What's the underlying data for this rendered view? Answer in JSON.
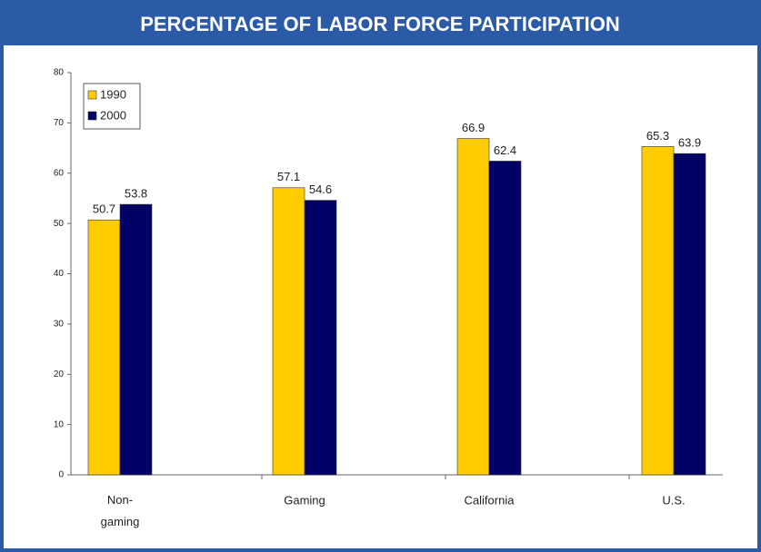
{
  "chart_data": {
    "type": "bar",
    "title": "PERCENTAGE OF LABOR FORCE PARTICIPATION",
    "categories": [
      "Non-gaming",
      "Gaming",
      "California",
      "U.S."
    ],
    "series": [
      {
        "name": "1990",
        "color": "#ffcc00",
        "values": [
          50.7,
          57.1,
          66.9,
          65.3
        ]
      },
      {
        "name": "2000",
        "color": "#000066",
        "values": [
          53.8,
          54.6,
          62.4,
          63.9
        ]
      }
    ],
    "ylim": [
      0,
      80
    ],
    "yticks": [
      0,
      10,
      20,
      30,
      40,
      50,
      60,
      70,
      80
    ],
    "grid": false,
    "legend": "upper left"
  }
}
